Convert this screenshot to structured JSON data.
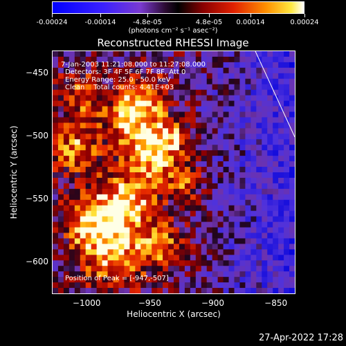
{
  "colorbar": {
    "ticks": [
      "-0.00024",
      "-0.00014",
      "-4.8e-05",
      "4.8e-05",
      "0.00014",
      "0.00024"
    ],
    "units": "(photons cm⁻² s⁻¹ asec⁻²)"
  },
  "title": "Reconstructed RHESSI Image",
  "annotations": {
    "time_range": "7-Jan-2003 11:21:08.000 to 11:27:08.000",
    "detectors": "Detectors: 3F 4F 5F 6F 7F 8F, Att 0",
    "energy": "Energy Range: 25.0 - 50.0 keV",
    "method": "Clean    Total counts: 4.41E+03",
    "peak": "Position of Peak = [-947,-507]"
  },
  "axes": {
    "xlabel": "Heliocentric X (arcsec)",
    "ylabel": "Heliocentric Y (arcsec)",
    "xticks": [
      "-1000",
      "-950",
      "-900",
      "-850"
    ],
    "yticks": [
      "-450",
      "-500",
      "-550",
      "-600"
    ],
    "xlim": [
      -1027,
      -835
    ],
    "ylim": [
      -625,
      -433
    ]
  },
  "peak_position": [
    -947,
    -507
  ],
  "timestamp": "27-Apr-2022 17:28"
}
